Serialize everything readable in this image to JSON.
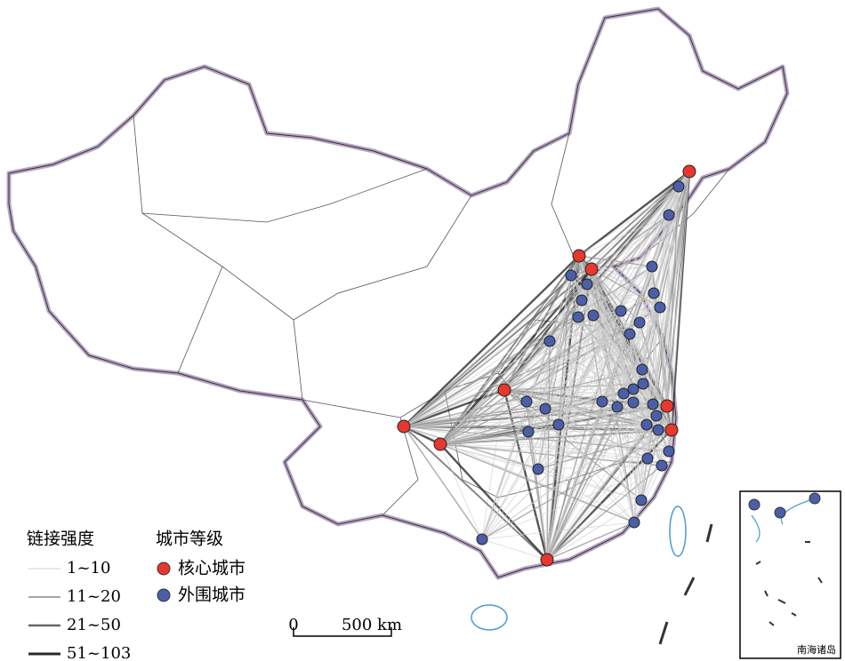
{
  "legend": {
    "link_strength": {
      "title": "链接强度",
      "items": [
        "1~10",
        "11~20",
        "21~50",
        "51~103"
      ]
    },
    "city_level": {
      "title": "城市等级",
      "items": [
        "核心城市",
        "外围城市"
      ]
    }
  },
  "scale_bar": {
    "labels": [
      "0",
      "500 km"
    ]
  },
  "inset": {
    "label": "南海诸岛"
  }
}
